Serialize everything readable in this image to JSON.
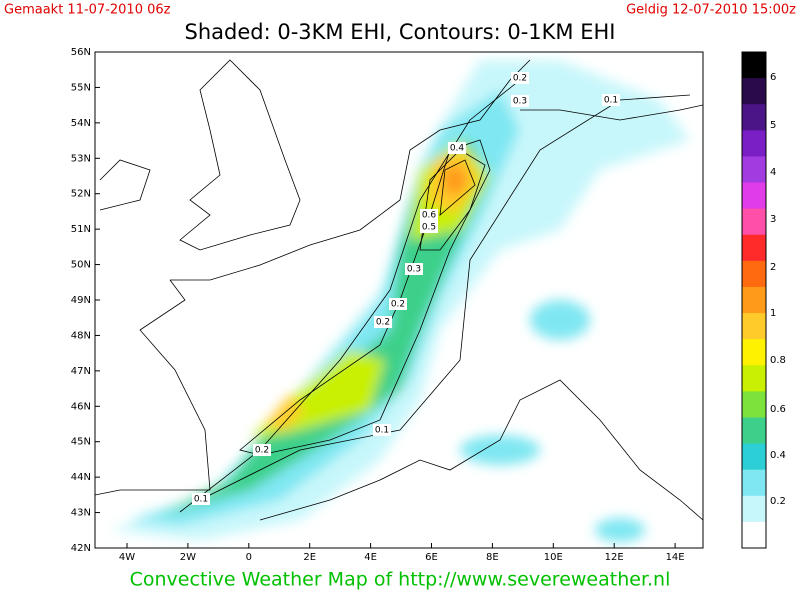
{
  "header": {
    "left": "Gemaakt 11-07-2010 06z",
    "right": "Geldig 12-07-2010 15:00z",
    "title": "Shaded: 0-3KM EHI, Contours: 0-1KM EHI"
  },
  "map": {
    "lat_labels": [
      "56N",
      "55N",
      "54N",
      "53N",
      "52N",
      "51N",
      "50N",
      "49N",
      "48N",
      "47N",
      "46N",
      "45N",
      "44N",
      "43N",
      "42N"
    ],
    "lon_labels": [
      "4W",
      "2W",
      "0",
      "2E",
      "4E",
      "6E",
      "8E",
      "10E",
      "12E",
      "14E"
    ],
    "contour_labels": [
      "0.2",
      "0.3",
      "0.1",
      "0.4",
      "0.6",
      "0.5",
      "0.3",
      "0.2",
      "0.2",
      "0.1",
      "0.2",
      "0.1"
    ]
  },
  "colorbar": {
    "labels": [
      "6",
      "5",
      "4",
      "3",
      "2",
      "1",
      "0.8",
      "0.6",
      "0.4",
      "0.2"
    ],
    "colors": [
      "#000000",
      "#2a0a4a",
      "#4b1487",
      "#7a1fc6",
      "#a23be0",
      "#e03ce8",
      "#ff4fa8",
      "#ff2a2a",
      "#ff6a10",
      "#ff9a1a",
      "#ffcb2a",
      "#fff200",
      "#c8f000",
      "#7ee23c",
      "#3cd08a",
      "#2ccfd6",
      "#7fe7f2",
      "#c8f7fb",
      "#ffffff"
    ]
  },
  "footer": "Convective Weather Map of http://www.severeweather.nl"
}
